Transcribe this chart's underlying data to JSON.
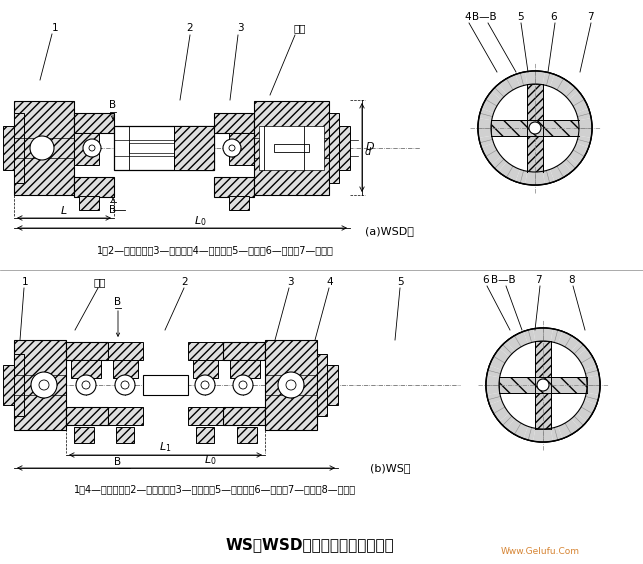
{
  "bg_color": "#ffffff",
  "line_color": "#000000",
  "title": "WS、WSD型十字轴式万向联轴器",
  "title_fontsize": 11,
  "caption_a": "(a)WSD型",
  "caption_b": "(b)WS型",
  "label_a": "1、2—半联轴器；3—圆锥销；4—十字轴；5—销钉；6—套筒；7—圆柱销",
  "label_b": "1、4—半联轴器；2—叉形接头；3—圆锥销；5—十字轴；6—销钉；7—套筒；8—圆柱销",
  "label_biao_zhi": "标志",
  "watermark": "Www.Gelufu.Com",
  "num1": "1",
  "num2": "2",
  "num3": "3",
  "num4": "4",
  "num5": "5",
  "num6": "6",
  "num7": "7",
  "num8": "8",
  "bb_label": "B—B",
  "dim_L": "L",
  "dim_L0": "L₀",
  "dim_L1": "L₁",
  "dim_D": "D",
  "dim_d": "d",
  "dim_B": "B"
}
